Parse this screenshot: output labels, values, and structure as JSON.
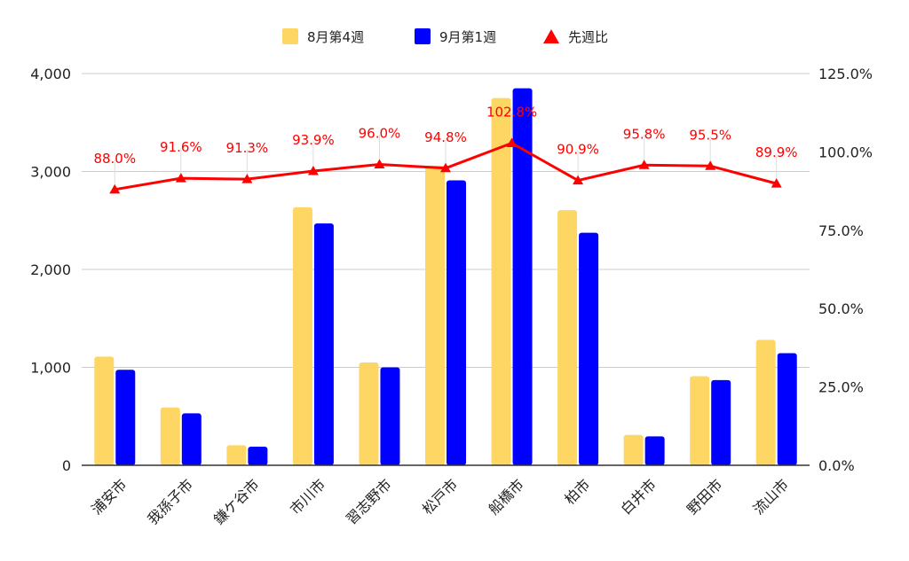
{
  "chart_data": {
    "type": "bar",
    "categories": [
      "浦安市",
      "我孫子市",
      "鎌ケ谷市",
      "市川市",
      "習志野市",
      "松戸市",
      "船橋市",
      "柏市",
      "白井市",
      "野田市",
      "流山市"
    ],
    "series": [
      {
        "name": "8月第4週",
        "kind": "bar",
        "axis": "left",
        "color": "#fdd663",
        "values": [
          1110,
          590,
          205,
          2635,
          1050,
          3060,
          3750,
          2605,
          310,
          910,
          1280
        ]
      },
      {
        "name": "9月第1週",
        "kind": "bar",
        "axis": "left",
        "color": "#0000ff",
        "values": [
          975,
          530,
          190,
          2470,
          1000,
          2910,
          3850,
          2375,
          295,
          870,
          1145
        ]
      },
      {
        "name": "先週比",
        "kind": "line",
        "axis": "right",
        "color": "#ff0000",
        "values": [
          88.0,
          91.6,
          91.3,
          93.9,
          96.0,
          94.8,
          102.8,
          90.9,
          95.8,
          95.5,
          89.9
        ],
        "labels": [
          "88.0%",
          "91.6%",
          "91.3%",
          "93.9%",
          "96.0%",
          "94.8%",
          "102.8%",
          "90.9%",
          "95.8%",
          "95.5%",
          "89.9%"
        ]
      }
    ],
    "left_axis": {
      "min": 0,
      "max": 4000,
      "ticks": [
        0,
        1000,
        2000,
        3000,
        4000
      ],
      "tick_labels": [
        "0",
        "1,000",
        "2,000",
        "3,000",
        "4,000"
      ]
    },
    "right_axis": {
      "min": 0,
      "max": 125,
      "ticks": [
        0,
        25,
        50,
        75,
        100,
        125
      ],
      "tick_labels": [
        "0.0%",
        "25.0%",
        "50.0%",
        "75.0%",
        "100.0%",
        "125.0%"
      ]
    },
    "grid": true,
    "legend_position": "top-center",
    "title": "",
    "xlabel": "",
    "ylabel": ""
  }
}
